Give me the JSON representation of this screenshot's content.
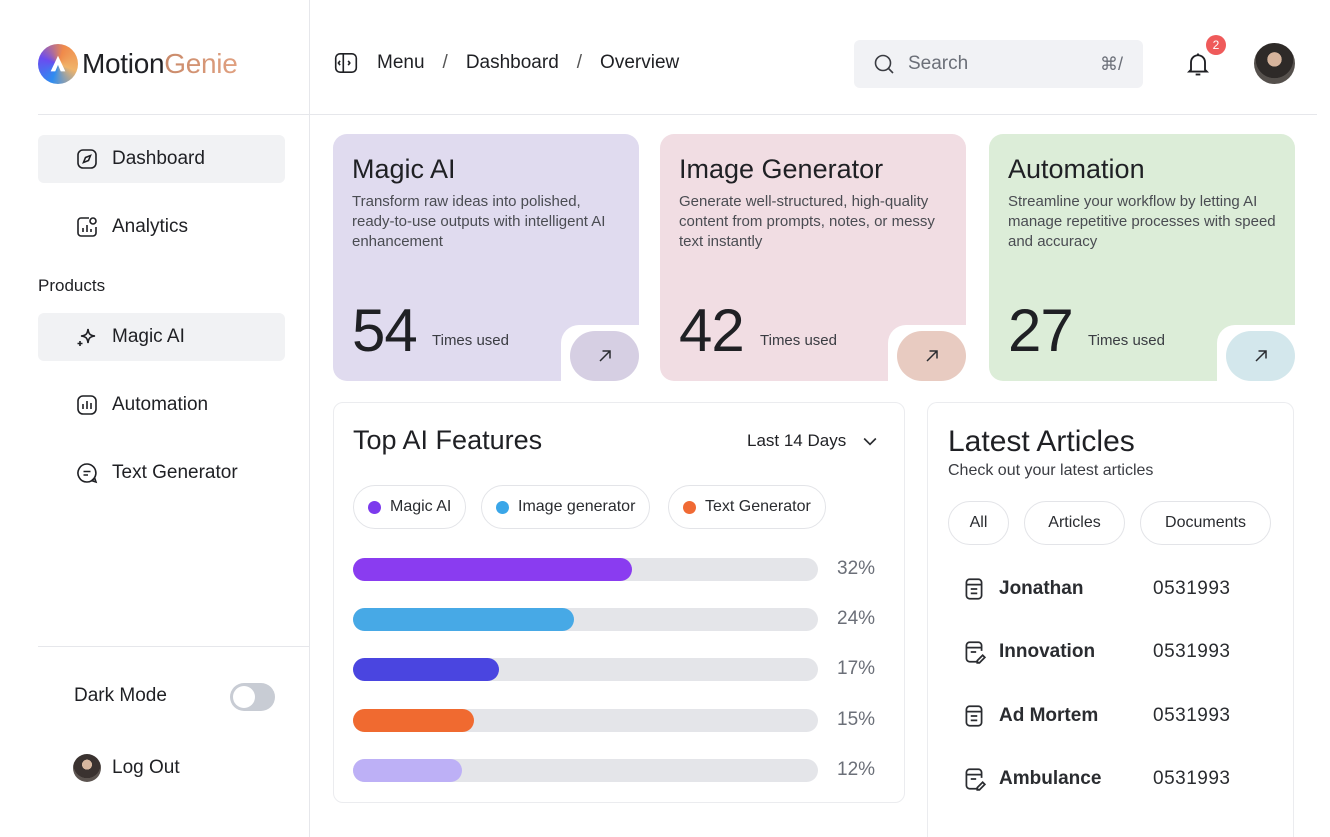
{
  "brand": {
    "name_part1": "Motion",
    "name_part2": "Genie"
  },
  "sidebar": {
    "items": [
      {
        "label": "Dashboard",
        "icon": "compass-icon",
        "active": true
      },
      {
        "label": "Analytics",
        "icon": "analytics-icon",
        "active": false
      }
    ],
    "section_label": "Products",
    "products": [
      {
        "label": "Magic AI",
        "icon": "sparkle-icon",
        "active": true
      },
      {
        "label": "Automation",
        "icon": "bar-chart-icon",
        "active": false
      },
      {
        "label": "Text Generator",
        "icon": "chat-icon",
        "active": false
      }
    ],
    "dark_mode_label": "Dark Mode",
    "dark_mode_on": false,
    "logout_label": "Log Out"
  },
  "header": {
    "breadcrumb": [
      "Menu",
      "Dashboard",
      "Overview"
    ],
    "separator": "/",
    "search_placeholder": "Search",
    "search_shortcut": "⌘/",
    "notification_count": "2"
  },
  "cards": [
    {
      "title": "Magic AI",
      "description": "Transform raw ideas into polished, ready-to-use outputs with intelligent AI enhancement",
      "count": "54",
      "unit": "Times used",
      "bg": "#e0dbef",
      "button_bg": "#d6cfe3"
    },
    {
      "title": "Image Generator",
      "description": "Generate well-structured, high-quality content from prompts, notes, or messy text instantly",
      "count": "42",
      "unit": "Times used",
      "bg": "#f1dde3",
      "button_bg": "#e8cbc1"
    },
    {
      "title": "Automation",
      "description": "Streamline your workflow by letting AI manage repetitive processes with speed and accuracy",
      "count": "27",
      "unit": "Times used",
      "bg": "#dcedd8",
      "button_bg": "#d3e7ec"
    }
  ],
  "features": {
    "title": "Top AI Features",
    "range_label": "Last 14 Days",
    "chips": [
      {
        "label": "Magic AI",
        "color": "#7c3aed"
      },
      {
        "label": "Image generator",
        "color": "#3aa6e8"
      },
      {
        "label": "Text Generator",
        "color": "#f06a34"
      }
    ],
    "bars": [
      {
        "pct": 32,
        "label": "32%",
        "color": "#8a3cf0",
        "fill": 0.6
      },
      {
        "pct": 24,
        "label": "24%",
        "color": "#47a9e6",
        "fill": 0.475
      },
      {
        "pct": 17,
        "label": "17%",
        "color": "#4a45e0",
        "fill": 0.315
      },
      {
        "pct": 15,
        "label": "15%",
        "color": "#f06a30",
        "fill": 0.26
      },
      {
        "pct": 12,
        "label": "12%",
        "color": "#bdb0f6",
        "fill": 0.235
      }
    ]
  },
  "articles": {
    "title": "Latest Articles",
    "subtitle": "Check out your latest articles",
    "filters": [
      "All",
      "Articles",
      "Documents"
    ],
    "rows": [
      {
        "name": "Jonathan",
        "code": "0531993",
        "icon": "document-icon"
      },
      {
        "name": "Innovation",
        "code": "0531993",
        "icon": "document-edit-icon"
      },
      {
        "name": "Ad Mortem",
        "code": "0531993",
        "icon": "document-icon"
      },
      {
        "name": "Ambulance",
        "code": "0531993",
        "icon": "document-edit-icon"
      }
    ]
  }
}
